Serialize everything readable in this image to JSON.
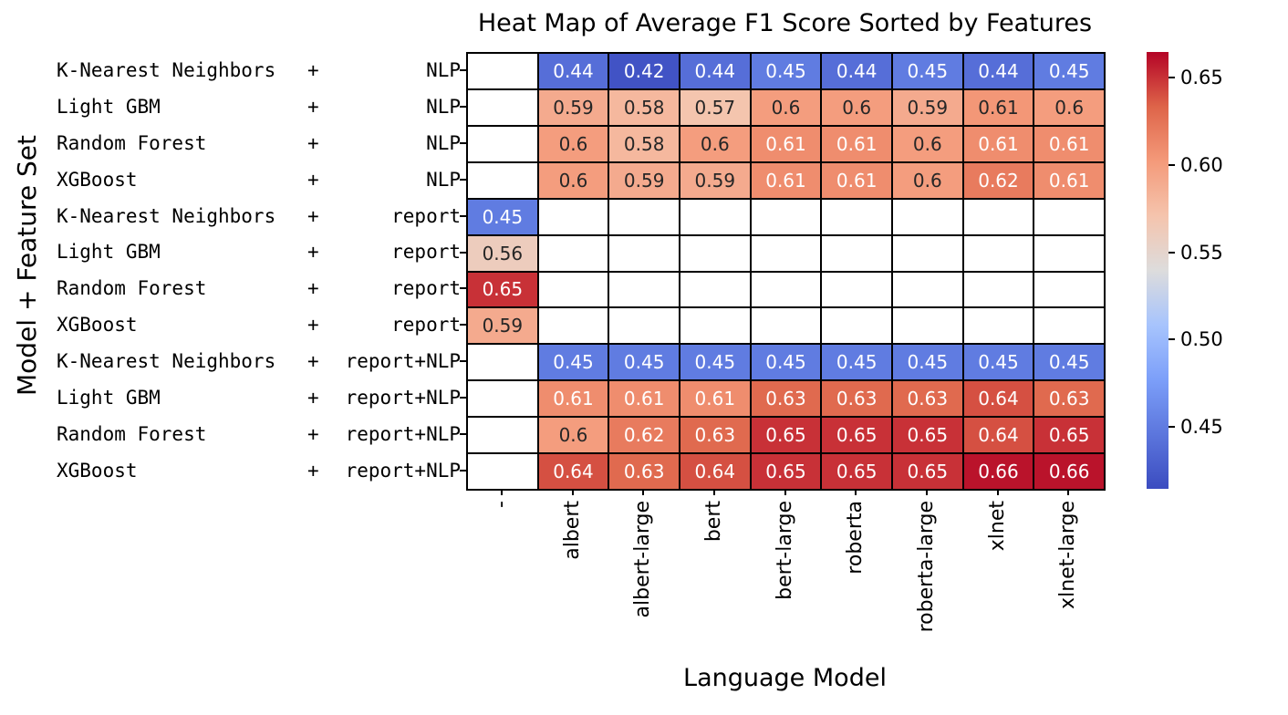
{
  "chart_data": {
    "type": "heatmap",
    "title": "Heat Map of Average F1 Score Sorted by Features",
    "xlabel": "Language Model",
    "ylabel": "Model + Feature Set",
    "x_categories": [
      "-",
      "albert",
      "albert-large",
      "bert",
      "bert-large",
      "roberta",
      "roberta-large",
      "xlnet",
      "xlnet-large"
    ],
    "y_categories": [
      {
        "model": "K-Nearest Neighbors",
        "separator": "+",
        "feature_set": "NLP"
      },
      {
        "model": "Light GBM",
        "separator": "+",
        "feature_set": "NLP"
      },
      {
        "model": "Random Forest",
        "separator": "+",
        "feature_set": "NLP"
      },
      {
        "model": "XGBoost",
        "separator": "+",
        "feature_set": "NLP"
      },
      {
        "model": "K-Nearest Neighbors",
        "separator": "+",
        "feature_set": "report"
      },
      {
        "model": "Light GBM",
        "separator": "+",
        "feature_set": "report"
      },
      {
        "model": "Random Forest",
        "separator": "+",
        "feature_set": "report"
      },
      {
        "model": "XGBoost",
        "separator": "+",
        "feature_set": "report"
      },
      {
        "model": "K-Nearest Neighbors",
        "separator": "+",
        "feature_set": "report+NLP"
      },
      {
        "model": "Light GBM",
        "separator": "+",
        "feature_set": "report+NLP"
      },
      {
        "model": "Random Forest",
        "separator": "+",
        "feature_set": "report+NLP"
      },
      {
        "model": "XGBoost",
        "separator": "+",
        "feature_set": "report+NLP"
      }
    ],
    "values": [
      [
        null,
        0.44,
        0.42,
        0.44,
        0.45,
        0.44,
        0.45,
        0.44,
        0.45
      ],
      [
        null,
        0.59,
        0.58,
        0.57,
        0.6,
        0.6,
        0.59,
        0.604,
        0.6
      ],
      [
        null,
        0.6,
        0.58,
        0.6,
        0.61,
        0.61,
        0.6,
        0.61,
        0.61
      ],
      [
        null,
        0.6,
        0.59,
        0.59,
        0.61,
        0.61,
        0.6,
        0.62,
        0.61
      ],
      [
        0.45,
        null,
        null,
        null,
        null,
        null,
        null,
        null,
        null
      ],
      [
        0.56,
        null,
        null,
        null,
        null,
        null,
        null,
        null,
        null
      ],
      [
        0.65,
        null,
        null,
        null,
        null,
        null,
        null,
        null,
        null
      ],
      [
        0.59,
        null,
        null,
        null,
        null,
        null,
        null,
        null,
        null
      ],
      [
        null,
        0.45,
        0.45,
        0.45,
        0.45,
        0.45,
        0.45,
        0.45,
        0.45
      ],
      [
        null,
        0.61,
        0.61,
        0.61,
        0.63,
        0.63,
        0.63,
        0.64,
        0.63
      ],
      [
        null,
        0.6,
        0.62,
        0.63,
        0.65,
        0.65,
        0.65,
        0.64,
        0.65
      ],
      [
        null,
        0.64,
        0.63,
        0.64,
        0.65,
        0.65,
        0.65,
        0.66,
        0.66
      ]
    ],
    "annotations": [
      [
        "",
        "0.44",
        "0.42",
        "0.44",
        "0.45",
        "0.44",
        "0.45",
        "0.44",
        "0.45"
      ],
      [
        "",
        "0.59",
        "0.58",
        "0.57",
        "0.6",
        "0.6",
        "0.59",
        "0.61",
        "0.6"
      ],
      [
        "",
        "0.6",
        "0.58",
        "0.6",
        "0.61",
        "0.61",
        "0.6",
        "0.61",
        "0.61"
      ],
      [
        "",
        "0.6",
        "0.59",
        "0.59",
        "0.61",
        "0.61",
        "0.6",
        "0.62",
        "0.61"
      ],
      [
        "0.45",
        "",
        "",
        "",
        "",
        "",
        "",
        "",
        ""
      ],
      [
        "0.56",
        "",
        "",
        "",
        "",
        "",
        "",
        "",
        ""
      ],
      [
        "0.65",
        "",
        "",
        "",
        "",
        "",
        "",
        "",
        ""
      ],
      [
        "0.59",
        "",
        "",
        "",
        "",
        "",
        "",
        "",
        ""
      ],
      [
        "",
        "0.45",
        "0.45",
        "0.45",
        "0.45",
        "0.45",
        "0.45",
        "0.45",
        "0.45"
      ],
      [
        "",
        "0.61",
        "0.61",
        "0.61",
        "0.63",
        "0.63",
        "0.63",
        "0.64",
        "0.63"
      ],
      [
        "",
        "0.6",
        "0.62",
        "0.63",
        "0.65",
        "0.65",
        "0.65",
        "0.64",
        "0.65"
      ],
      [
        "",
        "0.64",
        "0.63",
        "0.64",
        "0.65",
        "0.65",
        "0.65",
        "0.66",
        "0.66"
      ]
    ],
    "vmin": 0.4145,
    "vmax": 0.6648,
    "colormap": {
      "name": "coolwarm",
      "stops": [
        "#3b4cc0",
        "#5c76dd",
        "#7c9ff9",
        "#a7c4fd",
        "#dddcdc",
        "#f5c4ad",
        "#f49a7a",
        "#de6449",
        "#b40426"
      ]
    },
    "colorbar": {
      "tick_labels": [
        "0.65",
        "0.60",
        "0.55",
        "0.50",
        "0.45"
      ],
      "tick_values": [
        0.65,
        0.6,
        0.55,
        0.5,
        0.45
      ]
    },
    "annotation_text_colors": {
      "light": "#ffffff",
      "dark": "#262626"
    },
    "empty_cell_color": "#ffffff",
    "grid_line_color": "#000000",
    "background_color": "#ffffff",
    "legend_position": "right-colorbar",
    "grid": "cell-borders-on"
  }
}
